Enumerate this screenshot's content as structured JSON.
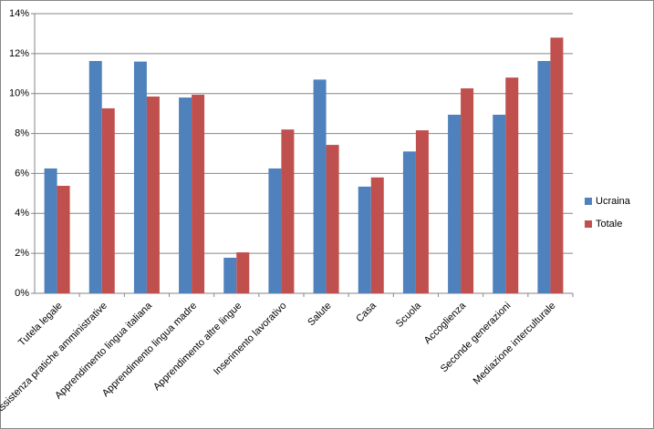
{
  "chart_data": {
    "type": "bar",
    "categories": [
      "Tutela legale",
      "Assistenza pratiche amministrative",
      "Apprendimento lingua italiana",
      "Apprendimento  lingua madre",
      "Apprendimento  altre lingue",
      "Inserimento lavorativo",
      "Salute",
      "Casa",
      "Scuola",
      "Accoglienza",
      "Seconde generazioni",
      "Mediazione interculturale"
    ],
    "series": [
      {
        "name": "Ucraina",
        "color": "#4f81bd",
        "values": [
          6.25,
          11.63,
          11.6,
          9.8,
          1.78,
          6.25,
          10.7,
          5.34,
          7.1,
          8.94,
          8.94,
          11.63
        ]
      },
      {
        "name": "Totale",
        "color": "#c0504d",
        "values": [
          5.38,
          9.26,
          9.85,
          9.94,
          2.05,
          8.2,
          7.43,
          5.8,
          8.16,
          10.26,
          10.8,
          12.8
        ]
      }
    ],
    "ylim": [
      0,
      14
    ],
    "yticks": [
      {
        "value": 0,
        "label": "0%"
      },
      {
        "value": 2,
        "label": "2%"
      },
      {
        "value": 4,
        "label": "4%"
      },
      {
        "value": 6,
        "label": "6%"
      },
      {
        "value": 8,
        "label": "8%"
      },
      {
        "value": 10,
        "label": "10%"
      },
      {
        "value": 12,
        "label": "12%"
      },
      {
        "value": 14,
        "label": "14%"
      }
    ],
    "grid": true,
    "legend": "right"
  }
}
